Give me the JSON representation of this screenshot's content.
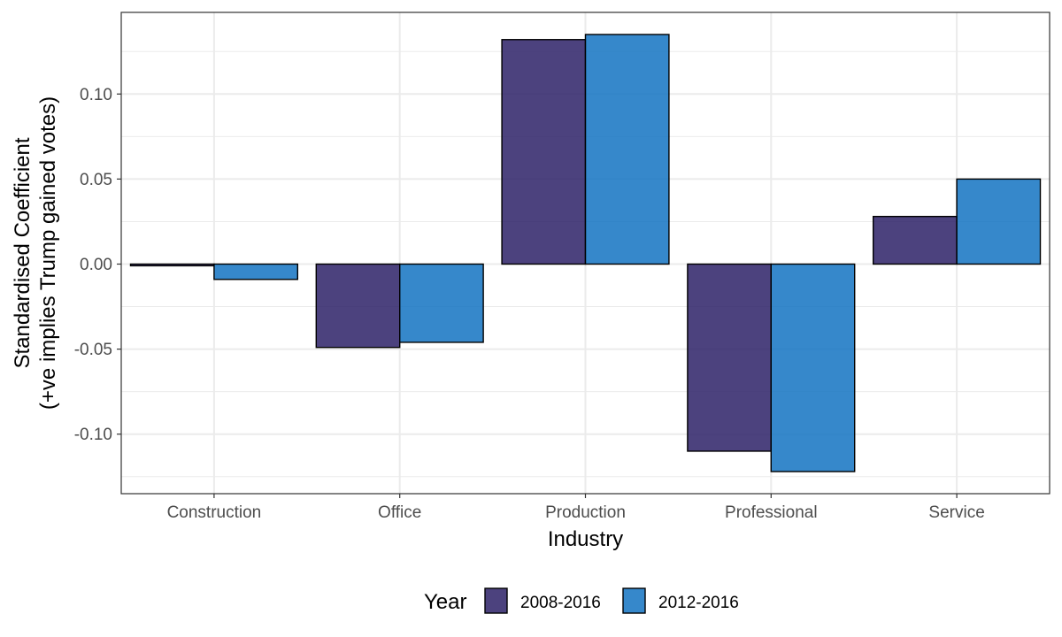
{
  "chart_data": {
    "type": "bar",
    "categories": [
      "Construction",
      "Office",
      "Production",
      "Professional",
      "Service"
    ],
    "series": [
      {
        "name": "2008-2016",
        "values": [
          -0.001,
          -0.049,
          0.132,
          -0.11,
          0.028
        ]
      },
      {
        "name": "2012-2016",
        "values": [
          -0.009,
          -0.046,
          0.135,
          -0.122,
          0.05
        ]
      }
    ],
    "xlabel": "Industry",
    "ylabel_lines": [
      "Standardised Coefficient",
      "(+ve implies Trump gained votes)"
    ],
    "ylim": [
      -0.135,
      0.148
    ],
    "yticks": [
      -0.1,
      -0.05,
      0.0,
      0.05,
      0.1
    ],
    "ytick_labels": [
      "-0.10",
      "-0.05",
      "0.00",
      "0.05",
      "0.10"
    ],
    "legend": {
      "title": "Year",
      "position": "bottom"
    },
    "grid": true,
    "colors": {
      "2008-2016": "#2f2369",
      "2012-2016": "#1574c2"
    },
    "bar_opacity": 0.86
  }
}
